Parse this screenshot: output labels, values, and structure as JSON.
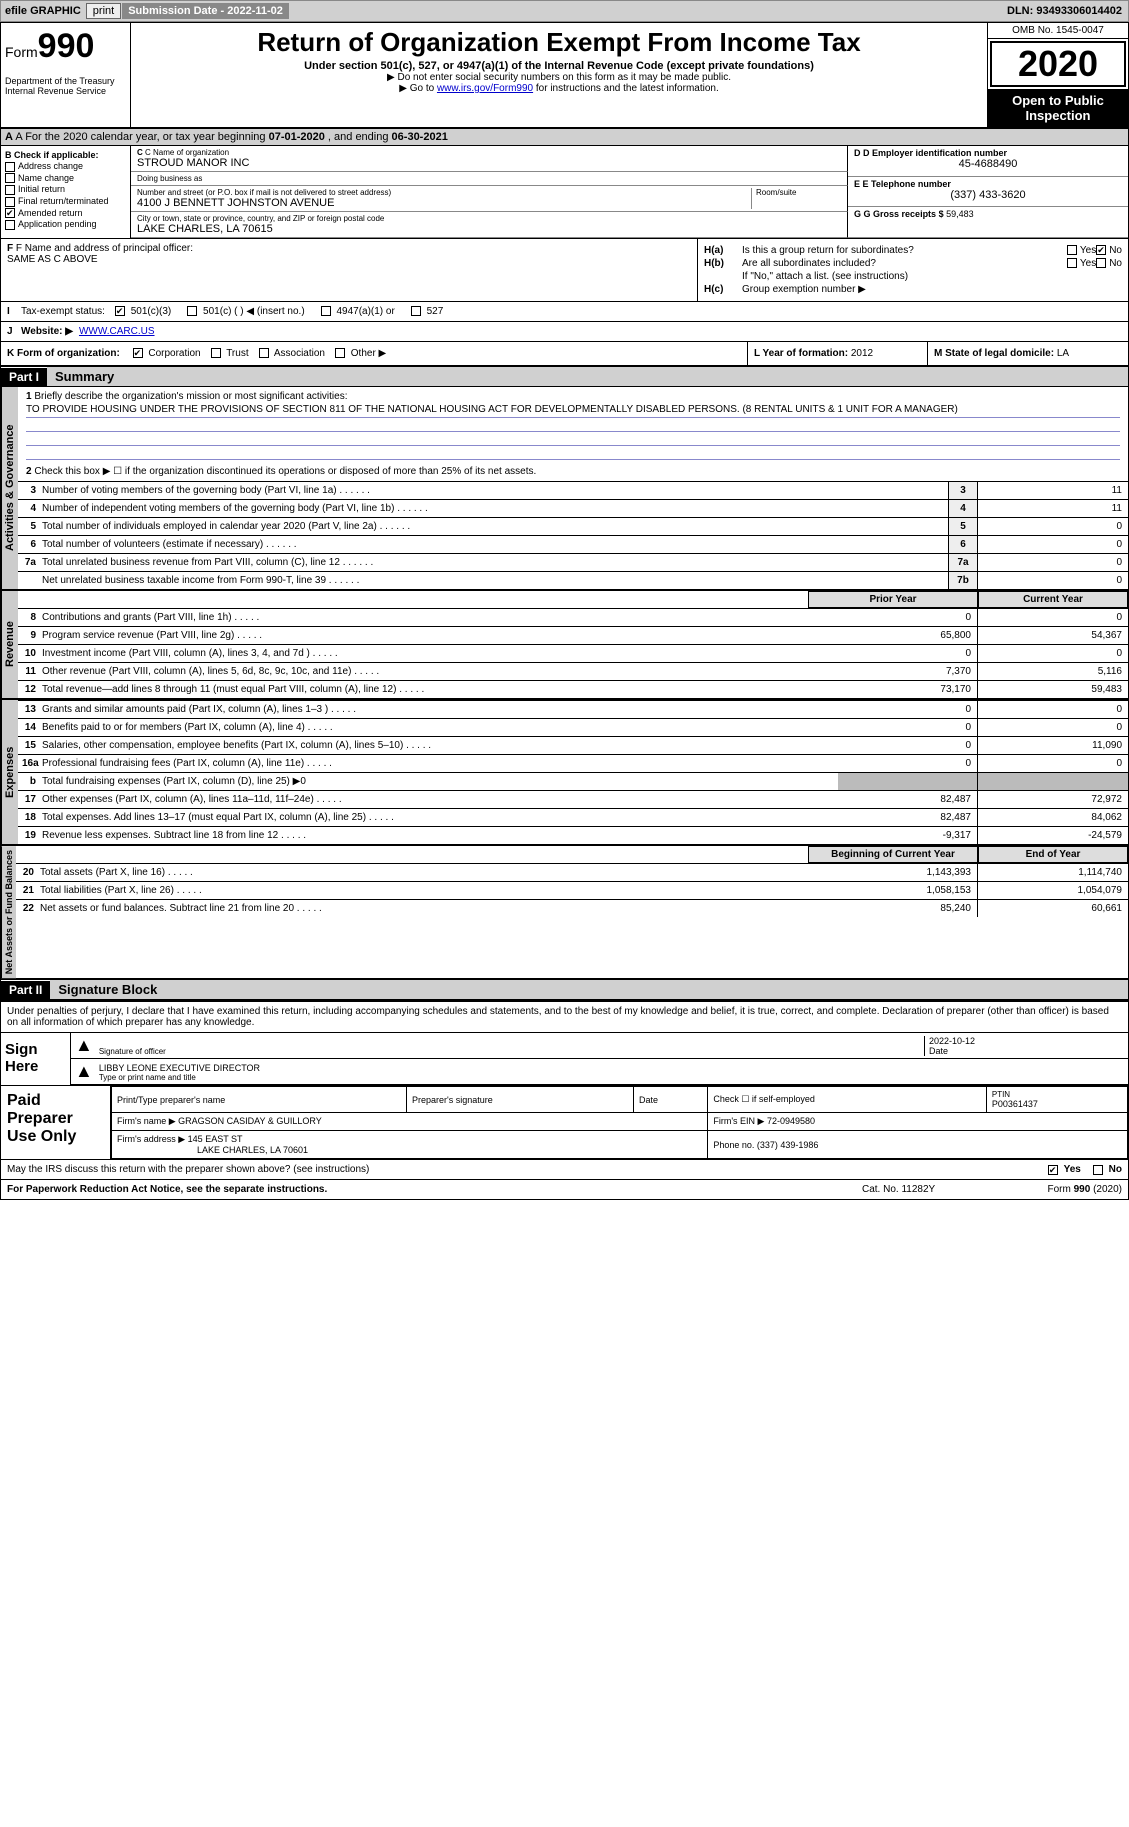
{
  "topbar": {
    "efile_label": "efile GRAPHIC",
    "print_btn": "print",
    "submission_label": "Submission Date - ",
    "submission_date": "2022-11-02",
    "dln_label": "DLN: ",
    "dln": "93493306014402"
  },
  "header": {
    "form_prefix": "Form",
    "form_number": "990",
    "dept": "Department of the Treasury\nInternal Revenue Service",
    "title": "Return of Organization Exempt From Income Tax",
    "subtitle": "Under section 501(c), 527, or 4947(a)(1) of the Internal Revenue Code (except private foundations)",
    "note1": "▶ Do not enter social security numbers on this form as it may be made public.",
    "note2_pre": "▶ Go to ",
    "note2_link": "www.irs.gov/Form990",
    "note2_post": " for instructions and the latest information.",
    "omb": "OMB No. 1545-0047",
    "year": "2020",
    "open_public": "Open to Public Inspection"
  },
  "rowA": {
    "text_pre": "A For the 2020 calendar year, or tax year beginning ",
    "begin": "07-01-2020",
    "mid": " , and ending ",
    "end": "06-30-2021"
  },
  "boxB": {
    "caption": "B Check if applicable:",
    "items": [
      {
        "label": "Address change",
        "checked": false
      },
      {
        "label": "Name change",
        "checked": false
      },
      {
        "label": "Initial return",
        "checked": false
      },
      {
        "label": "Final return/terminated",
        "checked": false
      },
      {
        "label": "Amended return",
        "checked": true
      },
      {
        "label": "Application pending",
        "checked": false
      }
    ]
  },
  "boxC": {
    "name_cap": "C Name of organization",
    "name": "STROUD MANOR INC",
    "dba_cap": "Doing business as",
    "dba": "",
    "street_cap": "Number and street (or P.O. box if mail is not delivered to street address)",
    "street": "4100 J BENNETT JOHNSTON AVENUE",
    "room_cap": "Room/suite",
    "room": "",
    "city_cap": "City or town, state or province, country, and ZIP or foreign postal code",
    "city": "LAKE CHARLES, LA  70615"
  },
  "boxD": {
    "cap": "D Employer identification number",
    "val": "45-4688490"
  },
  "boxE": {
    "cap": "E Telephone number",
    "val": "(337) 433-3620"
  },
  "boxG": {
    "cap": "G Gross receipts $ ",
    "val": "59,483"
  },
  "boxF": {
    "cap": "F Name and address of principal officer:",
    "val": "SAME AS C ABOVE"
  },
  "boxH": {
    "a_label": "H(a)",
    "a_text": "Is this a group return for subordinates?",
    "a_yes": "Yes",
    "a_no": "No",
    "a_no_checked": true,
    "b_label": "H(b)",
    "b_text": "Are all subordinates included?",
    "b_yes": "Yes",
    "b_no": "No",
    "b_note": "If \"No,\" attach a list. (see instructions)",
    "c_label": "H(c)",
    "c_text": "Group exemption number ▶"
  },
  "rowI": {
    "label": "I",
    "caption": "Tax-exempt status:",
    "opts": [
      {
        "label": "501(c)(3)",
        "checked": true
      },
      {
        "label": "501(c) (  ) ◀ (insert no.)",
        "checked": false
      },
      {
        "label": "4947(a)(1) or",
        "checked": false
      },
      {
        "label": "527",
        "checked": false
      }
    ]
  },
  "rowJ": {
    "label": "J",
    "caption": "Website: ▶",
    "val": "WWW.CARC.US"
  },
  "rowK": {
    "label": "K Form of organization:",
    "opts": [
      {
        "label": "Corporation",
        "checked": true
      },
      {
        "label": "Trust",
        "checked": false
      },
      {
        "label": "Association",
        "checked": false
      },
      {
        "label": "Other ▶",
        "checked": false
      }
    ]
  },
  "rowL": {
    "label": "L Year of formation: ",
    "val": "2012"
  },
  "rowM": {
    "label": "M State of legal domicile: ",
    "val": "LA"
  },
  "part1": {
    "hdr": "Part I",
    "title": "Summary",
    "sections": {
      "gov": {
        "side": "Activities & Governance",
        "q1_label": "1",
        "q1_text": "Briefly describe the organization's mission or most significant activities:",
        "q1_val": "TO PROVIDE HOUSING UNDER THE PROVISIONS OF SECTION 811 OF THE NATIONAL HOUSING ACT FOR DEVELOPMENTALLY DISABLED PERSONS. (8 RENTAL UNITS & 1 UNIT FOR A MANAGER)",
        "q2_label": "2",
        "q2_text": "Check this box ▶ ☐ if the organization discontinued its operations or disposed of more than 25% of its net assets.",
        "lines": [
          {
            "n": "3",
            "desc": "Number of voting members of the governing body (Part VI, line 1a)",
            "box": "3",
            "val": "11"
          },
          {
            "n": "4",
            "desc": "Number of independent voting members of the governing body (Part VI, line 1b)",
            "box": "4",
            "val": "11"
          },
          {
            "n": "5",
            "desc": "Total number of individuals employed in calendar year 2020 (Part V, line 2a)",
            "box": "5",
            "val": "0"
          },
          {
            "n": "6",
            "desc": "Total number of volunteers (estimate if necessary)",
            "box": "6",
            "val": "0"
          },
          {
            "n": "7a",
            "desc": "Total unrelated business revenue from Part VIII, column (C), line 12",
            "box": "7a",
            "val": "0"
          },
          {
            "n": "",
            "desc": "Net unrelated business taxable income from Form 990-T, line 39",
            "box": "7b",
            "val": "0"
          }
        ]
      },
      "rev": {
        "side": "Revenue",
        "col1": "Prior Year",
        "col2": "Current Year",
        "lines": [
          {
            "n": "8",
            "desc": "Contributions and grants (Part VIII, line 1h)",
            "v1": "0",
            "v2": "0"
          },
          {
            "n": "9",
            "desc": "Program service revenue (Part VIII, line 2g)",
            "v1": "65,800",
            "v2": "54,367"
          },
          {
            "n": "10",
            "desc": "Investment income (Part VIII, column (A), lines 3, 4, and 7d )",
            "v1": "0",
            "v2": "0"
          },
          {
            "n": "11",
            "desc": "Other revenue (Part VIII, column (A), lines 5, 6d, 8c, 9c, 10c, and 11e)",
            "v1": "7,370",
            "v2": "5,116"
          },
          {
            "n": "12",
            "desc": "Total revenue—add lines 8 through 11 (must equal Part VIII, column (A), line 12)",
            "v1": "73,170",
            "v2": "59,483"
          }
        ]
      },
      "exp": {
        "side": "Expenses",
        "lines": [
          {
            "n": "13",
            "desc": "Grants and similar amounts paid (Part IX, column (A), lines 1–3 )",
            "v1": "0",
            "v2": "0"
          },
          {
            "n": "14",
            "desc": "Benefits paid to or for members (Part IX, column (A), line 4)",
            "v1": "0",
            "v2": "0"
          },
          {
            "n": "15",
            "desc": "Salaries, other compensation, employee benefits (Part IX, column (A), lines 5–10)",
            "v1": "0",
            "v2": "11,090"
          },
          {
            "n": "16a",
            "desc": "Professional fundraising fees (Part IX, column (A), line 11e)",
            "v1": "0",
            "v2": "0"
          },
          {
            "n": "b",
            "desc": "Total fundraising expenses (Part IX, column (D), line 25) ▶0",
            "v1": "",
            "v2": "",
            "shade": true
          },
          {
            "n": "17",
            "desc": "Other expenses (Part IX, column (A), lines 11a–11d, 11f–24e)",
            "v1": "82,487",
            "v2": "72,972"
          },
          {
            "n": "18",
            "desc": "Total expenses. Add lines 13–17 (must equal Part IX, column (A), line 25)",
            "v1": "82,487",
            "v2": "84,062"
          },
          {
            "n": "19",
            "desc": "Revenue less expenses. Subtract line 18 from line 12",
            "v1": "-9,317",
            "v2": "-24,579"
          }
        ]
      },
      "net": {
        "side": "Net Assets or Fund Balances",
        "col1": "Beginning of Current Year",
        "col2": "End of Year",
        "lines": [
          {
            "n": "20",
            "desc": "Total assets (Part X, line 16)",
            "v1": "1,143,393",
            "v2": "1,114,740"
          },
          {
            "n": "21",
            "desc": "Total liabilities (Part X, line 26)",
            "v1": "1,058,153",
            "v2": "1,054,079"
          },
          {
            "n": "22",
            "desc": "Net assets or fund balances. Subtract line 21 from line 20",
            "v1": "85,240",
            "v2": "60,661"
          }
        ]
      }
    }
  },
  "part2": {
    "hdr": "Part II",
    "title": "Signature Block",
    "declaration": "Under penalties of perjury, I declare that I have examined this return, including accompanying schedules and statements, and to the best of my knowledge and belief, it is true, correct, and complete. Declaration of preparer (other than officer) is based on all information of which preparer has any knowledge.",
    "sign_here": "Sign Here",
    "sig_cap": "Signature of officer",
    "sig_date": "2022-10-12",
    "date_cap": "Date",
    "name_val": "LIBBY LEONE EXECUTIVE DIRECTOR",
    "name_cap": "Type or print name and title",
    "paid": {
      "label": "Paid Preparer Use Only",
      "h_name": "Print/Type preparer's name",
      "h_sig": "Preparer's signature",
      "h_date": "Date",
      "h_check": "Check ☐ if self-employed",
      "h_ptin_cap": "PTIN",
      "h_ptin": "P00361437",
      "firm_name_cap": "Firm's name   ▶",
      "firm_name": "GRAGSON CASIDAY & GUILLORY",
      "firm_ein_cap": "Firm's EIN ▶",
      "firm_ein": "72-0949580",
      "firm_addr_cap": "Firm's address ▶",
      "firm_addr": "145 EAST ST",
      "firm_city": "LAKE CHARLES, LA  70601",
      "phone_cap": "Phone no.",
      "phone": "(337) 439-1986"
    },
    "discuss": "May the IRS discuss this return with the preparer shown above? (see instructions)",
    "discuss_yes": "Yes",
    "discuss_no": "No",
    "discuss_yes_checked": true
  },
  "footer": {
    "left": "For Paperwork Reduction Act Notice, see the separate instructions.",
    "mid": "Cat. No. 11282Y",
    "right_pre": "Form ",
    "right_form": "990",
    "right_post": " (2020)"
  }
}
